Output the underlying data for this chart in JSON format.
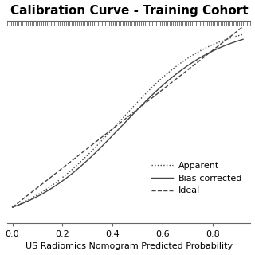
{
  "title": "Calibration Curve - Training Cohort",
  "xlabel": "US Radiomics Nomogram Predicted Probability",
  "xlim": [
    -0.02,
    0.95
  ],
  "ylim": [
    -0.08,
    0.95
  ],
  "xticks": [
    0.0,
    0.2,
    0.4,
    0.6,
    0.8
  ],
  "xticklabels": [
    "0.0",
    "0.2",
    "0.4",
    "0.6",
    "0.8"
  ],
  "bg_color": "#ffffff",
  "title_fontsize": 11,
  "axis_fontsize": 8,
  "tick_fontsize": 8,
  "legend_fontsize": 8,
  "line_color": "#444444",
  "ruler_nticks": 130
}
